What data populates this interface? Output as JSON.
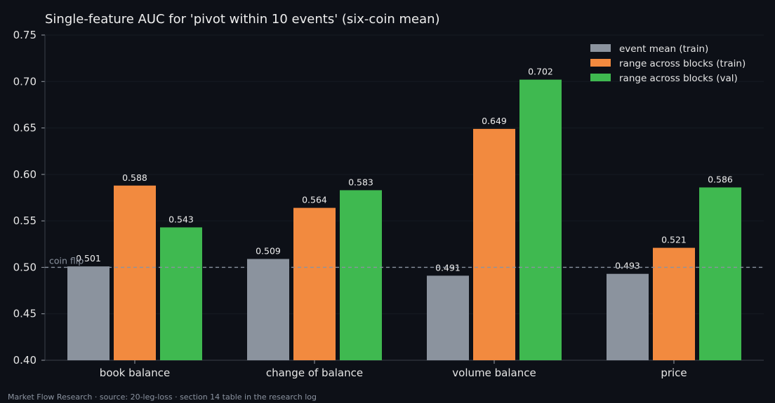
{
  "chart_data": {
    "type": "bar",
    "title": "Single-feature AUC for 'pivot within 10 events' (six-coin mean)",
    "xlabel": "",
    "ylabel": "",
    "ylim": [
      0.4,
      0.75
    ],
    "yticks": [
      "0.40",
      "0.45",
      "0.50",
      "0.55",
      "0.60",
      "0.65",
      "0.70",
      "0.75"
    ],
    "categories": [
      "book balance",
      "change of balance",
      "volume balance",
      "price"
    ],
    "series": [
      {
        "name": "event mean (train)",
        "color": "#8b939e",
        "values": [
          0.501,
          0.509,
          0.491,
          0.493
        ]
      },
      {
        "name": "range across blocks (train)",
        "color": "#f28a3f",
        "values": [
          0.588,
          0.564,
          0.649,
          0.521
        ]
      },
      {
        "name": "range across blocks (val)",
        "color": "#3fb950",
        "values": [
          0.543,
          0.583,
          0.702,
          0.586
        ]
      }
    ],
    "reference_line": {
      "value": 0.5,
      "label": "coin flip",
      "style": "dashed"
    },
    "legend": "top-right",
    "grid": true,
    "footer": "Market Flow Research · source: 20-leg-loss · section 14 table in the research log"
  }
}
